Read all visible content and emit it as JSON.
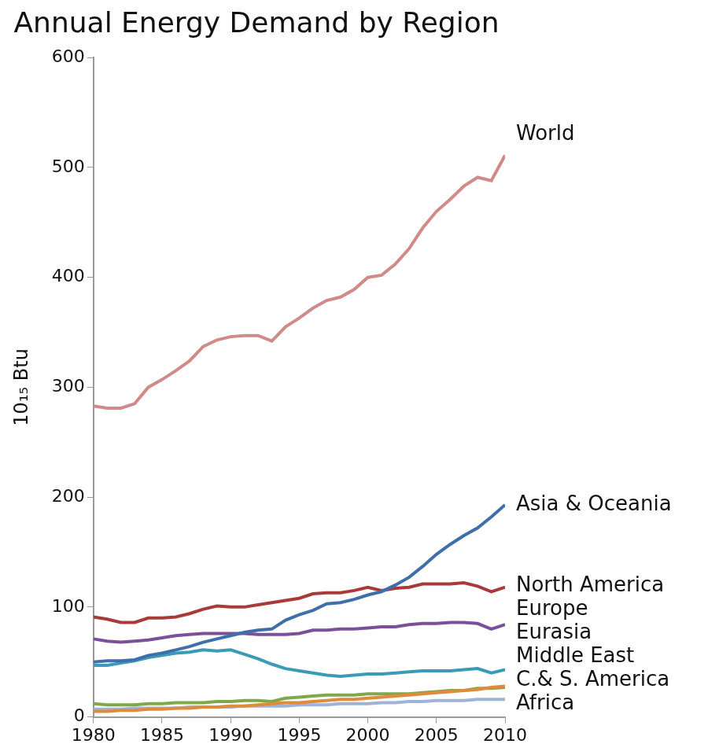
{
  "chart_data": {
    "type": "line",
    "title": "Annual Energy Demand by Region",
    "y_label": "10₁₅ Btu",
    "x": [
      1980,
      1981,
      1982,
      1983,
      1984,
      1985,
      1986,
      1987,
      1988,
      1989,
      1990,
      1991,
      1992,
      1993,
      1994,
      1995,
      1996,
      1997,
      1998,
      1999,
      2000,
      2001,
      2002,
      2003,
      2004,
      2005,
      2006,
      2007,
      2008,
      2009,
      2010
    ],
    "xlim": [
      1980,
      2010
    ],
    "xticks": [
      1980,
      1985,
      1990,
      1995,
      2000,
      2005,
      2010
    ],
    "ylim": [
      0,
      600
    ],
    "yticks": [
      0,
      100,
      200,
      300,
      400,
      500,
      600
    ],
    "grid": false,
    "series": [
      {
        "name": "World",
        "color": "#d08a8a",
        "values": [
          283,
          281,
          281,
          285,
          300,
          307,
          315,
          324,
          337,
          343,
          346,
          347,
          347,
          342,
          355,
          363,
          372,
          379,
          382,
          389,
          400,
          402,
          412,
          426,
          445,
          460,
          471,
          483,
          491,
          488,
          511
        ]
      },
      {
        "name": "Asia & Oceania",
        "color": "#3f6faa",
        "values": [
          50,
          51,
          51,
          52,
          56,
          58,
          61,
          64,
          68,
          71,
          74,
          77,
          79,
          80,
          88,
          93,
          97,
          103,
          104,
          107,
          111,
          114,
          120,
          127,
          137,
          148,
          157,
          165,
          172,
          182,
          193
        ]
      },
      {
        "name": "North America",
        "color": "#a83a3a",
        "values": [
          91,
          89,
          86,
          86,
          90,
          90,
          91,
          94,
          98,
          101,
          100,
          100,
          102,
          104,
          106,
          108,
          112,
          113,
          113,
          115,
          118,
          115,
          117,
          118,
          121,
          121,
          121,
          122,
          119,
          114,
          118
        ]
      },
      {
        "name": "Europe",
        "color": "#7b4f99",
        "values": [
          71,
          69,
          68,
          69,
          70,
          72,
          74,
          75,
          76,
          76,
          76,
          76,
          75,
          75,
          75,
          76,
          79,
          79,
          80,
          80,
          81,
          82,
          82,
          84,
          85,
          85,
          86,
          86,
          85,
          80,
          84
        ]
      },
      {
        "name": "Eurasia",
        "color": "#3b9bb7",
        "values": [
          47,
          47,
          49,
          51,
          54,
          56,
          58,
          59,
          61,
          60,
          61,
          57,
          53,
          48,
          44,
          42,
          40,
          38,
          37,
          38,
          39,
          39,
          40,
          41,
          42,
          42,
          42,
          43,
          44,
          40,
          43
        ]
      },
      {
        "name": "Middle East",
        "color": "#e08a3c",
        "values": [
          5,
          5,
          6,
          6,
          7,
          7,
          8,
          8,
          9,
          9,
          10,
          10,
          11,
          12,
          13,
          13,
          14,
          15,
          16,
          16,
          17,
          18,
          19,
          20,
          21,
          22,
          23,
          24,
          25,
          27,
          28
        ]
      },
      {
        "name": "C.& S. America",
        "color": "#7fa84a",
        "values": [
          12,
          11,
          11,
          11,
          12,
          12,
          13,
          13,
          13,
          14,
          14,
          15,
          15,
          14,
          17,
          18,
          19,
          20,
          20,
          20,
          21,
          21,
          21,
          21,
          22,
          23,
          24,
          24,
          26,
          26,
          27
        ]
      },
      {
        "name": "Africa",
        "color": "#9fb3d6",
        "values": [
          7,
          7,
          7,
          8,
          8,
          8,
          8,
          9,
          9,
          9,
          9,
          10,
          10,
          10,
          10,
          11,
          11,
          11,
          12,
          12,
          12,
          13,
          13,
          14,
          14,
          15,
          15,
          15,
          16,
          16,
          16
        ]
      }
    ]
  }
}
